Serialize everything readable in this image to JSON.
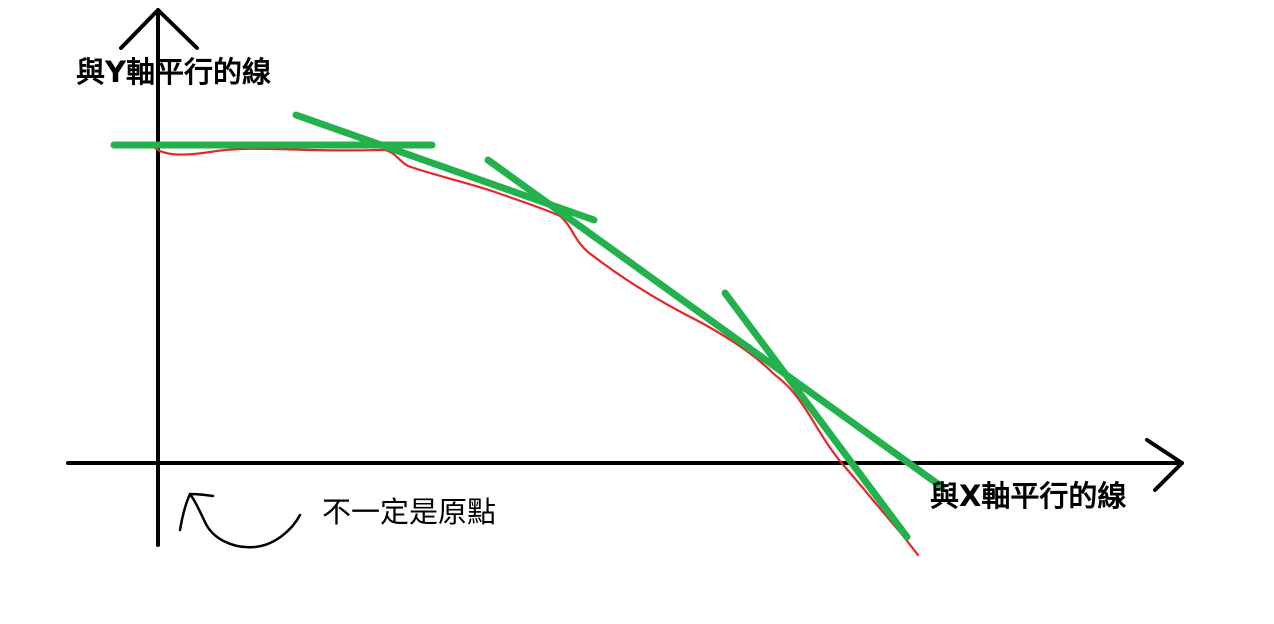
{
  "labels": {
    "y_axis_parallel": "與Y軸平行的線",
    "x_axis_parallel": "與X軸平行的線",
    "origin_note": "不一定是原點"
  },
  "colors": {
    "axes": "#000000",
    "curve": "#e8252a",
    "tangent": "#22b14c",
    "background": "#ffffff"
  }
}
